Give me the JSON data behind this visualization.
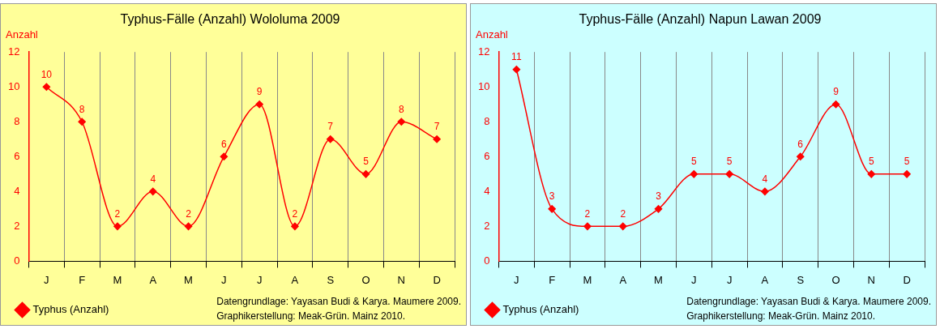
{
  "chart_data": [
    {
      "type": "line",
      "title": "Typhus-Fälle (Anzahl) Wololuma 2009",
      "ylabel": "Anzahl",
      "categories": [
        "J",
        "F",
        "M",
        "A",
        "M",
        "J",
        "J",
        "A",
        "S",
        "O",
        "N",
        "D"
      ],
      "series": [
        {
          "name": "Typhus (Anzahl)",
          "color": "#ff0000",
          "values": [
            10,
            8,
            2,
            4,
            2,
            6,
            9,
            2,
            7,
            5,
            8,
            7
          ]
        }
      ],
      "ylim": [
        0,
        12
      ],
      "yticks": [
        0,
        2,
        4,
        6,
        8,
        10,
        12
      ],
      "grid": "x",
      "legend": "bottom left",
      "marker": "diamond",
      "data_labels": true,
      "annotations": [
        "Datengrundlage: Yayasan Budi & Karya. Maumere 2009.",
        "Graphikerstellung: Meak-Grün. Mainz 2010."
      ]
    },
    {
      "type": "line",
      "title": "Typhus-Fälle (Anzahl) Napun Lawan 2009",
      "ylabel": "Anzahl",
      "categories": [
        "J",
        "F",
        "M",
        "A",
        "M",
        "J",
        "J",
        "A",
        "S",
        "O",
        "N",
        "D"
      ],
      "series": [
        {
          "name": "Typhus (Anzahl)",
          "color": "#ff0000",
          "values": [
            11,
            3,
            2,
            2,
            3,
            5,
            5,
            4,
            6,
            9,
            5,
            5
          ]
        }
      ],
      "ylim": [
        0,
        12
      ],
      "yticks": [
        0,
        2,
        4,
        6,
        8,
        10,
        12
      ],
      "grid": "x",
      "legend": "bottom left",
      "marker": "diamond",
      "data_labels": true,
      "annotations": [
        "Datengrundlage: Yayasan Budi & Karya. Maumere 2009.",
        "Graphikerstellung: Meak-Grün. Mainz 2010."
      ]
    }
  ]
}
